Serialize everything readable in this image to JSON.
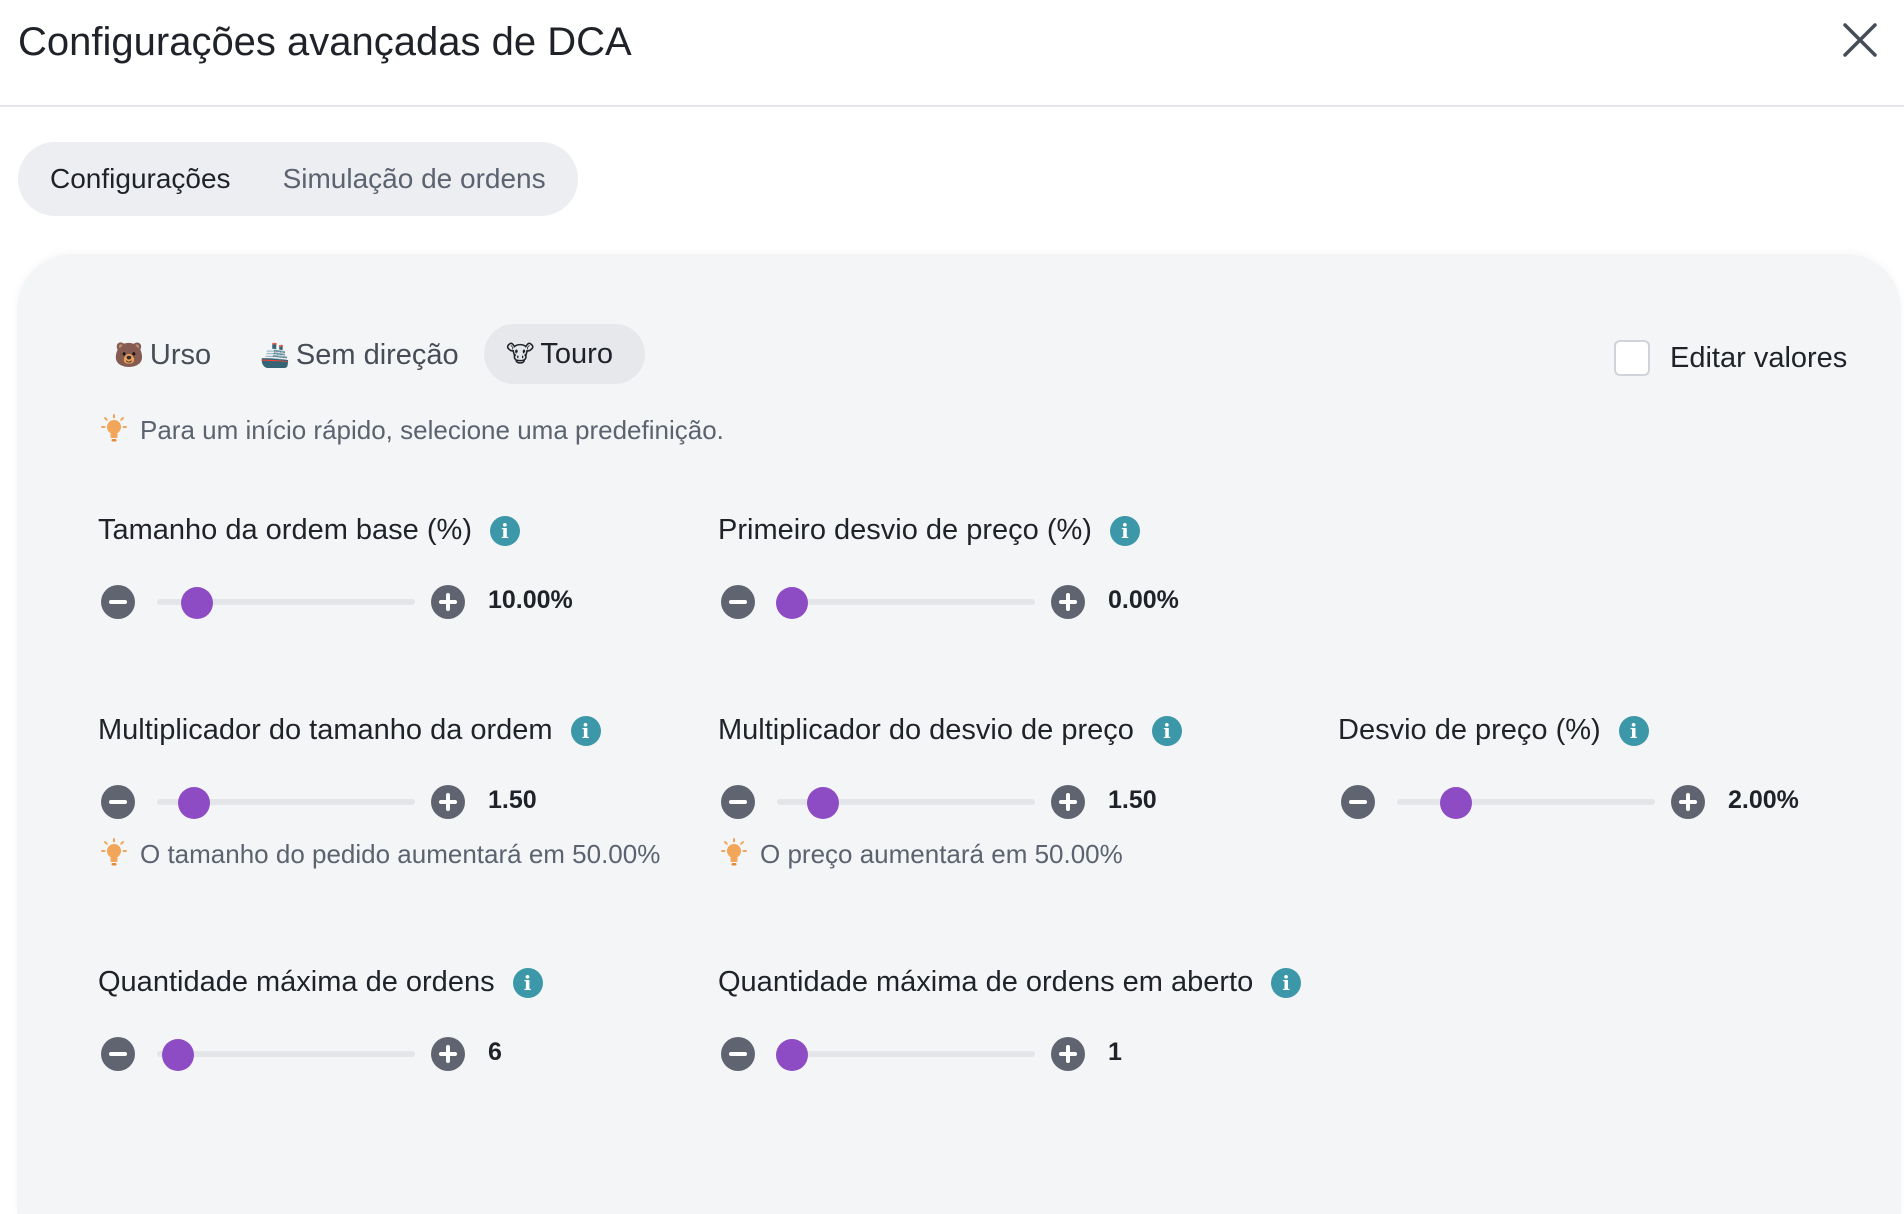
{
  "header": {
    "title": "Configurações avançadas de DCA"
  },
  "tabs": [
    {
      "label": "Configurações",
      "active": true
    },
    {
      "label": "Simulação de ordens",
      "active": false
    }
  ],
  "presets": [
    {
      "emoji": "🐻",
      "label": "Urso"
    },
    {
      "emoji": "🚢",
      "label": "Sem direção"
    },
    {
      "emoji": "🐮",
      "label": "Touro",
      "selected": true
    }
  ],
  "edit_values": {
    "label": "Editar valores",
    "checked": false
  },
  "quick_start_hint": "Para um início rápido, selecione uma predefinição.",
  "fields": [
    {
      "label": "Tamanho da ordem base (%)",
      "value": "10.00%",
      "slider_fraction": 0.155,
      "hint": ""
    },
    {
      "label": "Primeiro desvio de preço (%)",
      "value": "0.00%",
      "slider_fraction": 0.06,
      "hint": ""
    },
    {
      "label": "Multiplicador do tamanho da ordem",
      "value": "1.50",
      "slider_fraction": 0.145,
      "hint": "O tamanho do pedido aumentará em 50.00%"
    },
    {
      "label": "Multiplicador do desvio de preço",
      "value": "1.50",
      "slider_fraction": 0.18,
      "hint": "O preço aumentará em 50.00%"
    },
    {
      "label": "Desvio de preço (%)",
      "value": "2.00%",
      "slider_fraction": 0.23,
      "hint": ""
    },
    {
      "label": "Quantidade máxima de ordens",
      "value": "6",
      "slider_fraction": 0.08,
      "hint": ""
    },
    {
      "label": "Quantidade máxima de ordens em aberto",
      "value": "1",
      "slider_fraction": 0.06,
      "hint": ""
    }
  ],
  "colors": {
    "slider_thumb": "#8e4cc4",
    "info_icon": "#3c97a8",
    "step_button": "#5f6470",
    "hint_bulb": "#f2a65a"
  },
  "icons": {
    "close": "close-icon",
    "info": "info-icon",
    "bulb": "lightbulb-icon",
    "minus": "minus-circle-icon",
    "plus": "plus-circle-icon"
  }
}
